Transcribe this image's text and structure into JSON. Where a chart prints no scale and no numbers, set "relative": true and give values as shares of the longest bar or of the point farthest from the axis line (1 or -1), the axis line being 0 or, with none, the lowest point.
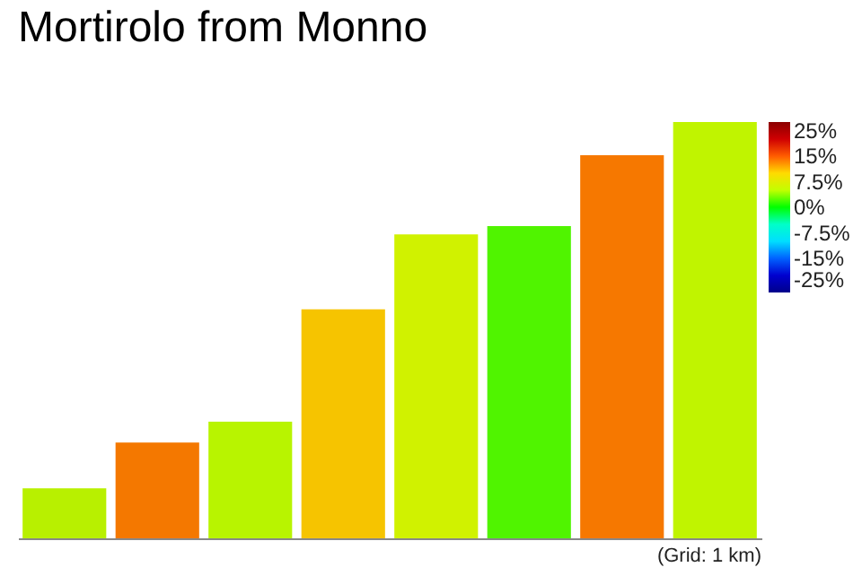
{
  "chart_data": {
    "type": "bar",
    "title": "Mortirolo from Monno",
    "relative": true,
    "categories": [
      null,
      null,
      null,
      null,
      null,
      null,
      null,
      null
    ],
    "values": [
      0.12,
      0.23,
      0.28,
      0.55,
      0.73,
      0.75,
      0.92,
      1
    ],
    "colors": [
      "#b8f000",
      "#f47800",
      "#b8f400",
      "#f6c400",
      "#d0f200",
      "#50f400",
      "#f67800",
      "#c0f400"
    ],
    "clim": [
      -25,
      25
    ],
    "cticks": [
      {
        "value": 25,
        "label": "25%"
      },
      {
        "value": 15,
        "label": "15%"
      },
      {
        "value": 7.5,
        "label": "7.5%"
      },
      {
        "value": 0,
        "label": "0%"
      },
      {
        "value": -7.5,
        "label": "-7.5%"
      },
      {
        "value": -15,
        "label": "-15%"
      },
      {
        "value": -25,
        "label": "-25%"
      }
    ],
    "annotations": [
      "(Grid: 1 km)"
    ]
  }
}
